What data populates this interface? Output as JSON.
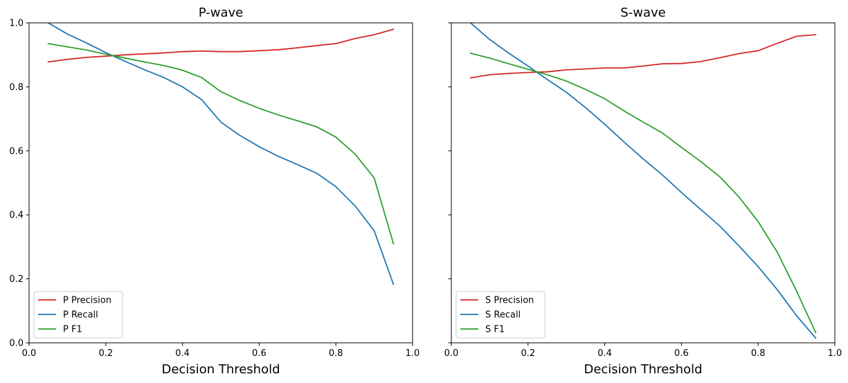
{
  "chart_data": [
    {
      "type": "line",
      "title": "P-wave",
      "xlabel": "Decision Threshold",
      "ylabel": "",
      "xlim": [
        0.0,
        1.0
      ],
      "ylim": [
        0.0,
        1.0
      ],
      "xticks": [
        "0.0",
        "0.2",
        "0.4",
        "0.6",
        "0.8",
        "1.0"
      ],
      "yticks": [
        "0.0",
        "0.2",
        "0.4",
        "0.6",
        "0.8",
        "1.0"
      ],
      "grid": false,
      "legend": "lower-left",
      "x": [
        0.05,
        0.1,
        0.15,
        0.2,
        0.25,
        0.3,
        0.35,
        0.4,
        0.45,
        0.5,
        0.55,
        0.6,
        0.65,
        0.7,
        0.75,
        0.8,
        0.85,
        0.9,
        0.95
      ],
      "series": [
        {
          "name": "P Precision",
          "color": "#d62728",
          "values": [
            0.878,
            0.886,
            0.892,
            0.896,
            0.9,
            0.903,
            0.906,
            0.91,
            0.912,
            0.91,
            0.91,
            0.913,
            0.916,
            0.922,
            0.929,
            0.935,
            0.951,
            0.963,
            0.98
          ]
        },
        {
          "name": "P Recall",
          "color": "#1f77b4",
          "values": [
            1.0,
            0.965,
            0.937,
            0.907,
            0.88,
            0.854,
            0.83,
            0.8,
            0.76,
            0.69,
            0.648,
            0.613,
            0.583,
            0.557,
            0.53,
            0.488,
            0.428,
            0.35,
            0.183
          ]
        },
        {
          "name": "P F1",
          "color": "#2ca02c",
          "values": [
            0.935,
            0.925,
            0.915,
            0.902,
            0.89,
            0.878,
            0.867,
            0.852,
            0.829,
            0.785,
            0.757,
            0.733,
            0.712,
            0.694,
            0.675,
            0.643,
            0.59,
            0.515,
            0.31
          ]
        }
      ]
    },
    {
      "type": "line",
      "title": "S-wave",
      "xlabel": "Decision Threshold",
      "ylabel": "",
      "xlim": [
        0.0,
        1.0
      ],
      "ylim": [
        0.0,
        1.0
      ],
      "xticks": [
        "0.0",
        "0.2",
        "0.4",
        "0.6",
        "0.8",
        "1.0"
      ],
      "yticks": [
        "0.0",
        "0.2",
        "0.4",
        "0.6",
        "0.8",
        "1.0"
      ],
      "shared_y": true,
      "grid": false,
      "legend": "lower-left",
      "x": [
        0.05,
        0.1,
        0.15,
        0.2,
        0.25,
        0.3,
        0.35,
        0.4,
        0.45,
        0.5,
        0.55,
        0.6,
        0.65,
        0.7,
        0.75,
        0.8,
        0.85,
        0.9,
        0.95
      ],
      "series": [
        {
          "name": "S Precision",
          "color": "#d62728",
          "values": [
            0.828,
            0.838,
            0.842,
            0.845,
            0.847,
            0.853,
            0.856,
            0.859,
            0.859,
            0.865,
            0.872,
            0.873,
            0.879,
            0.891,
            0.904,
            0.913,
            0.936,
            0.958,
            0.963
          ]
        },
        {
          "name": "S Recall",
          "color": "#1f77b4",
          "values": [
            1.0,
            0.948,
            0.905,
            0.865,
            0.823,
            0.783,
            0.735,
            0.683,
            0.628,
            0.575,
            0.525,
            0.47,
            0.417,
            0.365,
            0.303,
            0.238,
            0.166,
            0.085,
            0.015
          ]
        },
        {
          "name": "S F1",
          "color": "#2ca02c",
          "values": [
            0.905,
            0.89,
            0.872,
            0.855,
            0.838,
            0.818,
            0.792,
            0.763,
            0.725,
            0.69,
            0.656,
            0.611,
            0.567,
            0.519,
            0.456,
            0.379,
            0.283,
            0.162,
            0.032
          ]
        }
      ]
    }
  ]
}
